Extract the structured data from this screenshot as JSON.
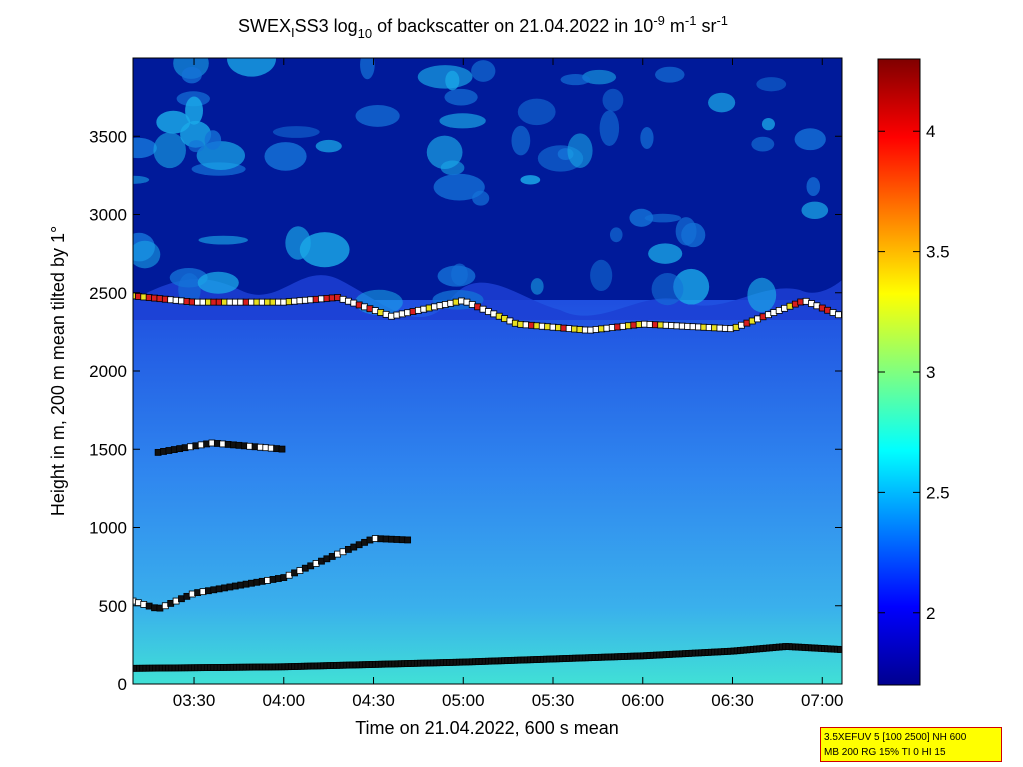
{
  "title": {
    "parts": [
      "SWEX",
      "I",
      "SS3 log",
      "10",
      " of backscatter on 21.04.2022 in 10",
      "-9",
      " m",
      "-1",
      " sr",
      "-1"
    ]
  },
  "chart_data": {
    "type": "heatmap",
    "xlabel": "Time on 21.04.2022, 600 s mean",
    "ylabel": "Height in m, 200 m mean tilted by 1°",
    "x_ticks": [
      "03:30",
      "04:00",
      "04:30",
      "05:00",
      "05:30",
      "06:00",
      "06:30",
      "07:00"
    ],
    "x_tick_hours": [
      3.5,
      4.0,
      4.5,
      5.0,
      5.5,
      6.0,
      6.5,
      7.0
    ],
    "xlim_hours": [
      3.16,
      7.11
    ],
    "y_ticks": [
      0,
      500,
      1000,
      1500,
      2000,
      2500,
      3000,
      3500
    ],
    "ylim": [
      0,
      4000
    ],
    "colorbar": {
      "ticks": [
        "2",
        "2.5",
        "3",
        "3.5",
        "4"
      ],
      "tick_values": [
        2,
        2.5,
        3,
        3.5,
        4
      ],
      "range": [
        1.7,
        4.3
      ],
      "colormap": "jet"
    },
    "layers": [
      {
        "name": "surface",
        "x_hours": [
          3.16,
          4.0,
          5.0,
          6.0,
          6.5,
          6.8,
          7.11
        ],
        "height_m": [
          100,
          110,
          140,
          180,
          210,
          240,
          220
        ]
      },
      {
        "name": "mixing",
        "x_hours": [
          3.16,
          3.3,
          3.5,
          4.0,
          4.5,
          4.7
        ],
        "height_m": [
          530,
          480,
          580,
          680,
          930,
          920
        ]
      },
      {
        "name": "aerosol",
        "x_hours": [
          3.3,
          3.6,
          4.0
        ],
        "height_m": [
          1480,
          1540,
          1500
        ]
      },
      {
        "name": "top",
        "x_hours": [
          3.16,
          3.5,
          4.0,
          4.3,
          4.6,
          5.0,
          5.3,
          5.7,
          6.0,
          6.5,
          6.9,
          7.11
        ],
        "height_m": [
          2480,
          2440,
          2440,
          2470,
          2350,
          2450,
          2300,
          2260,
          2300,
          2270,
          2450,
          2350
        ]
      }
    ]
  },
  "info_box": {
    "line1": "3.5XEFUV 5 [100 2500] NH 600",
    "line2": "MB 200 RG 15% TI 0 HI 15"
  }
}
